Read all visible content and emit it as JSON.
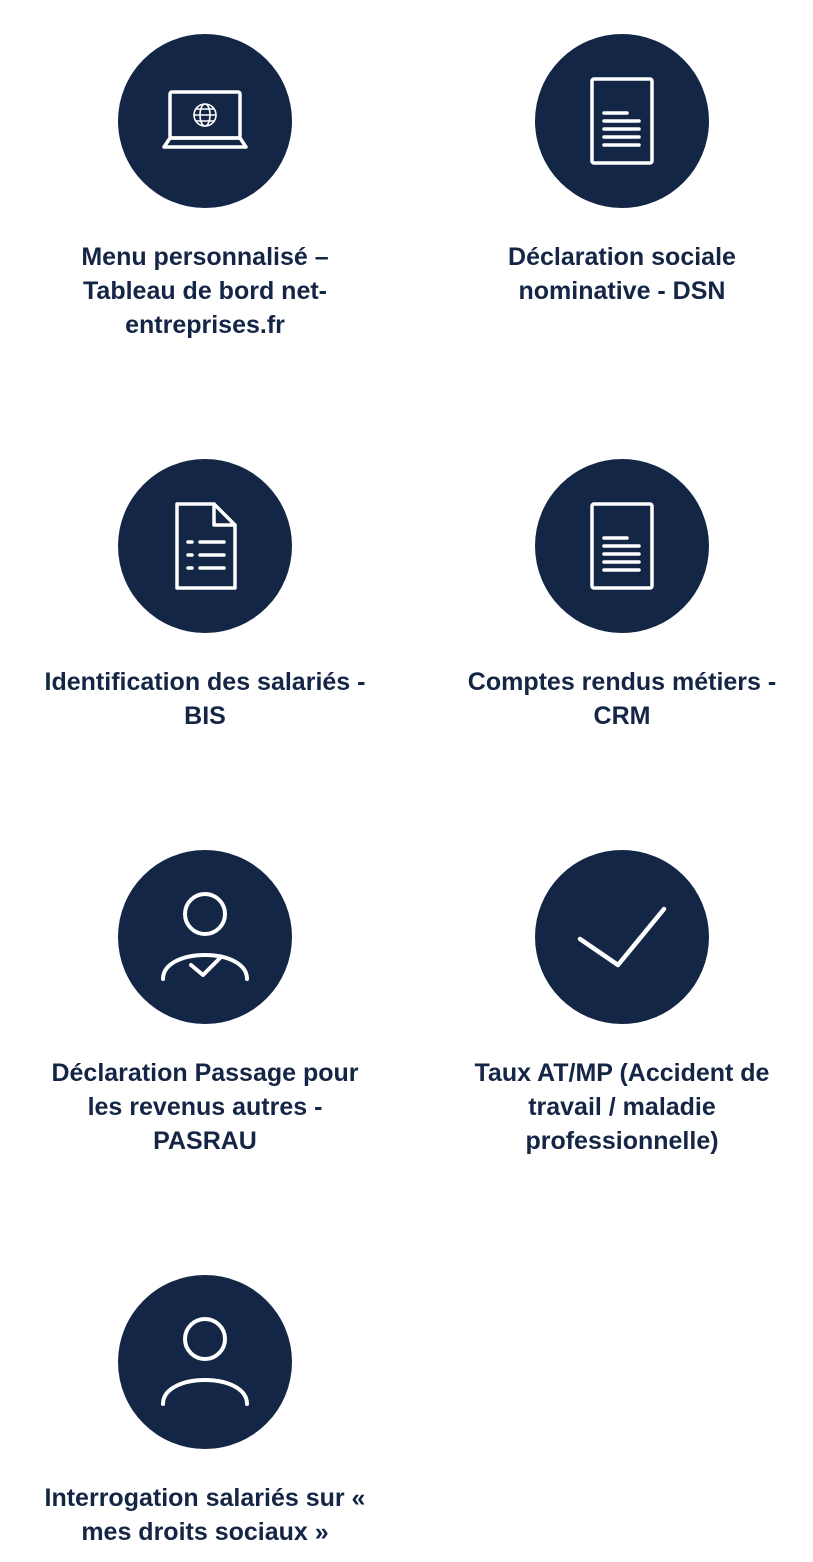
{
  "services": [
    {
      "id": "menu",
      "icon": "laptop-globe-icon",
      "label": "Menu personnalisé – Tableau de bord net-entreprises.fr"
    },
    {
      "id": "dsn",
      "icon": "document-lines-icon",
      "label": "Déclaration sociale nominative - DSN"
    },
    {
      "id": "bis",
      "icon": "document-list-icon",
      "label": "Identification des salariés - BIS"
    },
    {
      "id": "crm",
      "icon": "document-lines-icon",
      "label": "Comptes rendus métiers - CRM"
    },
    {
      "id": "pasrau",
      "icon": "user-check-icon",
      "label": "Déclaration Passage pour les revenus autres - PASRAU"
    },
    {
      "id": "atmp",
      "icon": "checkmark-icon",
      "label": "Taux AT/MP (Accident de travail / maladie professionnelle)"
    },
    {
      "id": "droits",
      "icon": "user-icon",
      "label": "Interrogation salariés sur « mes droits sociaux »"
    }
  ],
  "colors": {
    "circle": "#142645",
    "text": "#152545",
    "background": "#ffffff"
  }
}
